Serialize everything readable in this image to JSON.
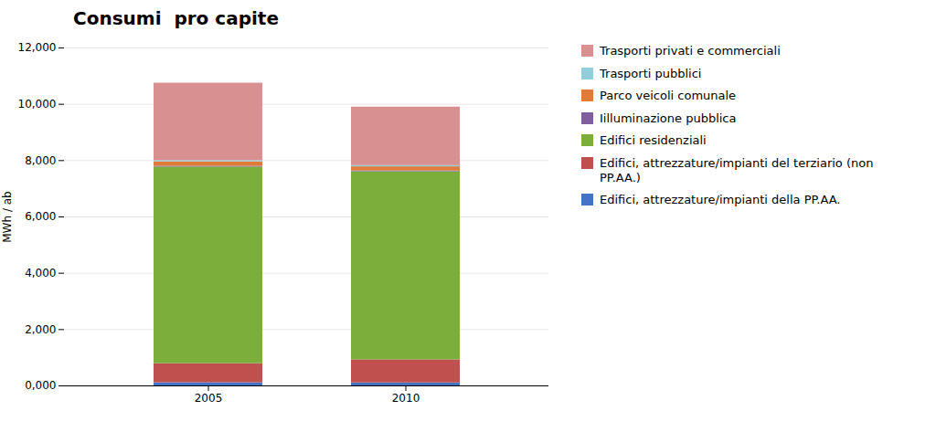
{
  "chart_data": {
    "type": "bar",
    "stacked": true,
    "title": "Consumi  pro capite",
    "ylabel": "MWh / ab",
    "categories": [
      "2005",
      "2010"
    ],
    "ylim": [
      0,
      12000
    ],
    "yticks": [
      {
        "value": 0,
        "label": "0,000"
      },
      {
        "value": 2000,
        "label": "2,000"
      },
      {
        "value": 4000,
        "label": "4,000"
      },
      {
        "value": 6000,
        "label": "6,000"
      },
      {
        "value": 8000,
        "label": "8,000"
      },
      {
        "value": 10000,
        "label": "10,000"
      },
      {
        "value": 12000,
        "label": "12,000"
      }
    ],
    "grid": true,
    "legend": "right",
    "series": [
      {
        "name": "Edifici, attrezzature/impianti della PP.AA.",
        "color": "#4472C4",
        "values": [
          110,
          105
        ]
      },
      {
        "name": "Edifici, attrezzature/impianti del terziario (non\nPP.AA.)",
        "color": "#C0504D",
        "values": [
          680,
          820
        ]
      },
      {
        "name": "Edifici residenziali",
        "color": "#7CAF3A",
        "values": [
          6980,
          6680
        ]
      },
      {
        "name": "Iilluminazione pubblica",
        "color": "#7F5FA0",
        "values": [
          30,
          30
        ]
      },
      {
        "name": "Parco veicoli comunale",
        "color": "#E07B39",
        "values": [
          155,
          145
        ]
      },
      {
        "name": "Trasporti pubblici",
        "color": "#92CDDC",
        "values": [
          45,
          40
        ]
      },
      {
        "name": "Trasporti privati e commerciali",
        "color": "#D99090",
        "values": [
          2750,
          2080
        ]
      }
    ]
  }
}
